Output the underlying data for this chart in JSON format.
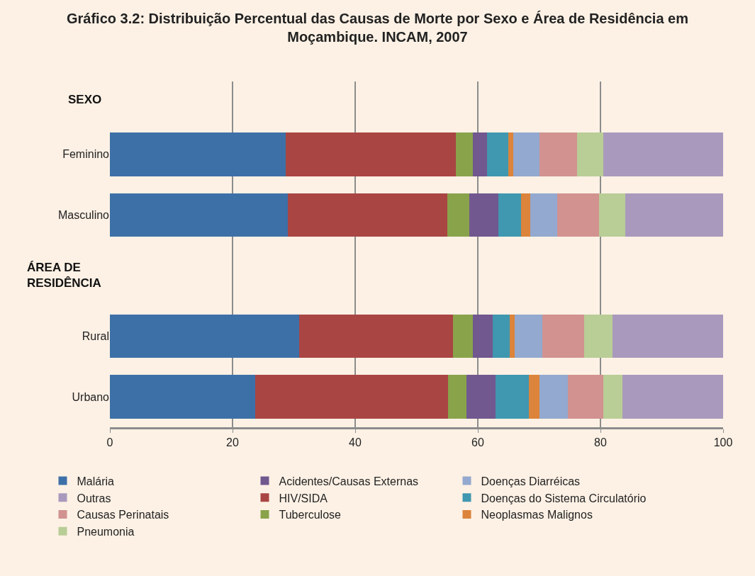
{
  "chart_data": {
    "type": "bar",
    "orientation": "horizontal",
    "stacked": true,
    "title": "Gráfico 3.2: Distribuição Percentual das Causas de Morte por Sexo e Área de Residência em Moçambique. INCAM, 2007",
    "categories": [
      "Feminino",
      "Masculino",
      null,
      "Rural",
      "Urbano"
    ],
    "series": [
      {
        "name": "Malária",
        "color": "#3e70a8",
        "values": [
          28.7,
          29.0,
          null,
          30.9,
          23.7
        ]
      },
      {
        "name": "HIV/SIDA",
        "color": "#a94543",
        "values": [
          27.7,
          26.0,
          null,
          25.0,
          31.5
        ]
      },
      {
        "name": "Tuberculose",
        "color": "#89a34b",
        "values": [
          2.8,
          3.6,
          null,
          3.3,
          2.9
        ]
      },
      {
        "name": "Acidentes/Causas Externas",
        "color": "#71588f",
        "values": [
          2.3,
          4.8,
          null,
          3.2,
          4.8
        ]
      },
      {
        "name": "Doenças do Sistema Circulatório",
        "color": "#4097b0",
        "values": [
          3.5,
          3.6,
          null,
          2.8,
          5.4
        ]
      },
      {
        "name": "Neoplasmas Malignos",
        "color": "#dc843b",
        "values": [
          0.8,
          1.5,
          null,
          0.8,
          1.8
        ]
      },
      {
        "name": "Doenças Diarréicas",
        "color": "#93a9cf",
        "values": [
          4.3,
          4.5,
          null,
          4.5,
          4.6
        ]
      },
      {
        "name": "Causas Perinatais",
        "color": "#d19290",
        "values": [
          6.1,
          6.8,
          null,
          6.8,
          5.8
        ]
      },
      {
        "name": "Pneumonia",
        "color": "#b9cd96",
        "values": [
          4.3,
          4.3,
          null,
          4.7,
          3.1
        ]
      },
      {
        "name": "Outras",
        "color": "#a999bd",
        "values": [
          19.5,
          15.9,
          null,
          18.0,
          16.4
        ]
      }
    ],
    "annotations": [
      "SEXO",
      "ÁREA DE RESIDÊNCIA"
    ],
    "xlim": [
      0,
      100
    ],
    "xticks": [
      0,
      20,
      40,
      60,
      80,
      100
    ],
    "grid": "x",
    "legend": "bottom"
  }
}
